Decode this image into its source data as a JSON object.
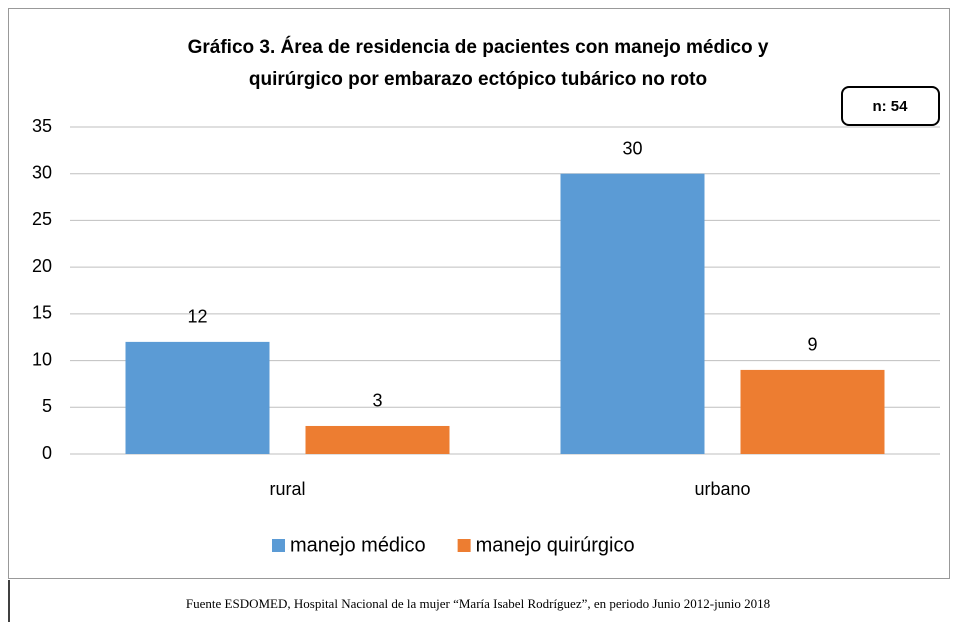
{
  "chart_data": {
    "type": "bar",
    "title": [
      "Gráfico 3. Área de residencia de pacientes con manejo médico y",
      "quirúrgico por embarazo ectópico tubárico no roto"
    ],
    "annotation": "n: 54",
    "source": "Fuente ESDOMED, Hospital Nacional de la mujer “María Isabel Rodríguez”, en periodo Junio 2012-junio 2018",
    "categories": [
      "rural",
      "urbano"
    ],
    "series": [
      {
        "name": "manejo médico",
        "color": "#5b9bd5",
        "values": [
          12,
          30
        ]
      },
      {
        "name": "manejo quirúrgico",
        "color": "#ed7d31",
        "values": [
          3,
          9
        ]
      }
    ],
    "ylim": [
      0,
      35
    ],
    "yticks": [
      0,
      5,
      10,
      15,
      20,
      25,
      30,
      35
    ],
    "grid": true,
    "legend": "bottom"
  }
}
